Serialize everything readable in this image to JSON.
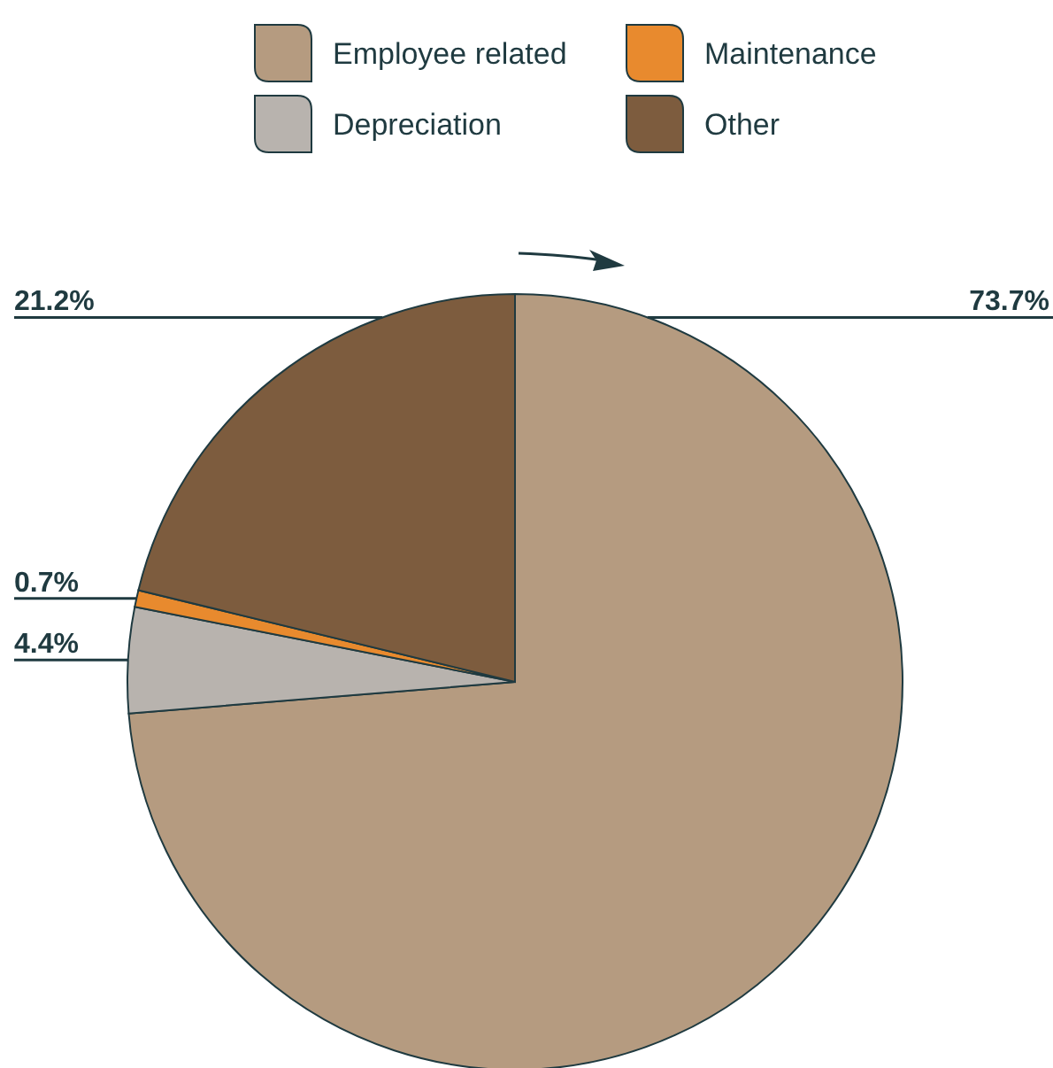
{
  "chart_data": {
    "type": "pie",
    "categories": [
      "Employee related",
      "Depreciation",
      "Maintenance",
      "Other"
    ],
    "values": [
      73.7,
      4.4,
      0.7,
      21.2
    ],
    "colors": [
      "#b59b80",
      "#b8b3ae",
      "#e88a2e",
      "#7d5c3e"
    ],
    "value_labels": [
      "73.7%",
      "4.4%",
      "0.7%",
      "21.2%"
    ],
    "legend": "top"
  }
}
